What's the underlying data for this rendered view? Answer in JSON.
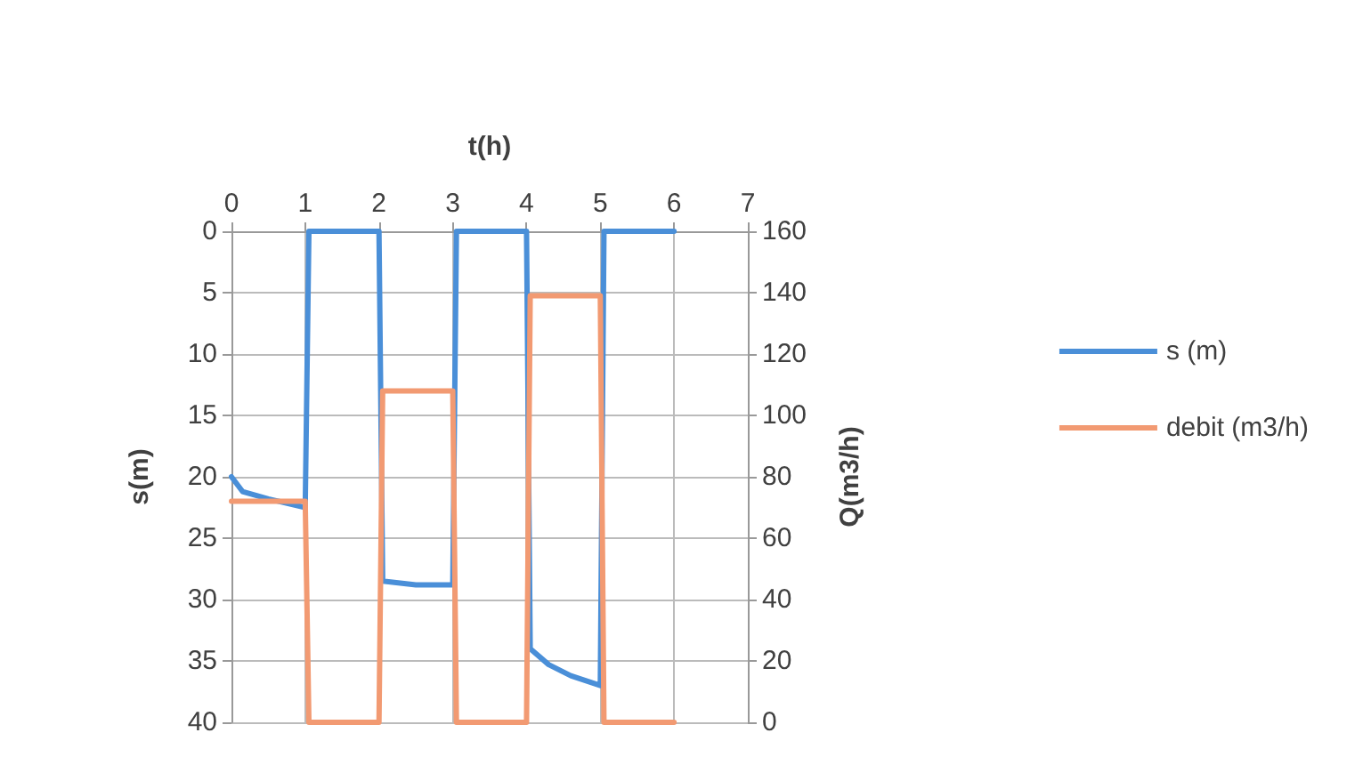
{
  "chart_data": {
    "type": "line",
    "xlabel": "t(h)",
    "ylabel": "s(m)",
    "y2label": "Q(m3/h)",
    "xlim": [
      0,
      7
    ],
    "xticks": [
      0,
      1,
      2,
      3,
      4,
      5,
      6,
      7
    ],
    "ylim": [
      40,
      0
    ],
    "yticks": [
      0,
      5,
      10,
      15,
      20,
      25,
      30,
      35,
      40
    ],
    "y2lim": [
      0,
      160
    ],
    "y2ticks": [
      0,
      20,
      40,
      60,
      80,
      100,
      120,
      140,
      160
    ],
    "grid": true,
    "legend": "right",
    "marker": "none",
    "line_style": "solid",
    "series": [
      {
        "name": "s (m)",
        "color": "#4a8fd8",
        "x": [
          0,
          0.15,
          0.5,
          1,
          1.05,
          2,
          2.05,
          2.5,
          3,
          3.05,
          4,
          4.05,
          4.3,
          4.6,
          5,
          5.05,
          6
        ],
        "values": [
          20,
          21.2,
          21.8,
          22.5,
          0,
          0,
          28.5,
          28.8,
          28.8,
          0,
          0,
          34,
          35.3,
          36.2,
          37,
          0,
          0
        ]
      },
      {
        "name": "debit (m3/h)",
        "color": "#f29a72",
        "axis": "y2",
        "x": [
          0,
          1,
          1.05,
          2,
          2.05,
          3,
          3.05,
          4,
          4.05,
          5,
          5.05,
          6
        ],
        "values": [
          72,
          72,
          0,
          0,
          108,
          108,
          0,
          0,
          139,
          139,
          0,
          0
        ]
      }
    ]
  }
}
